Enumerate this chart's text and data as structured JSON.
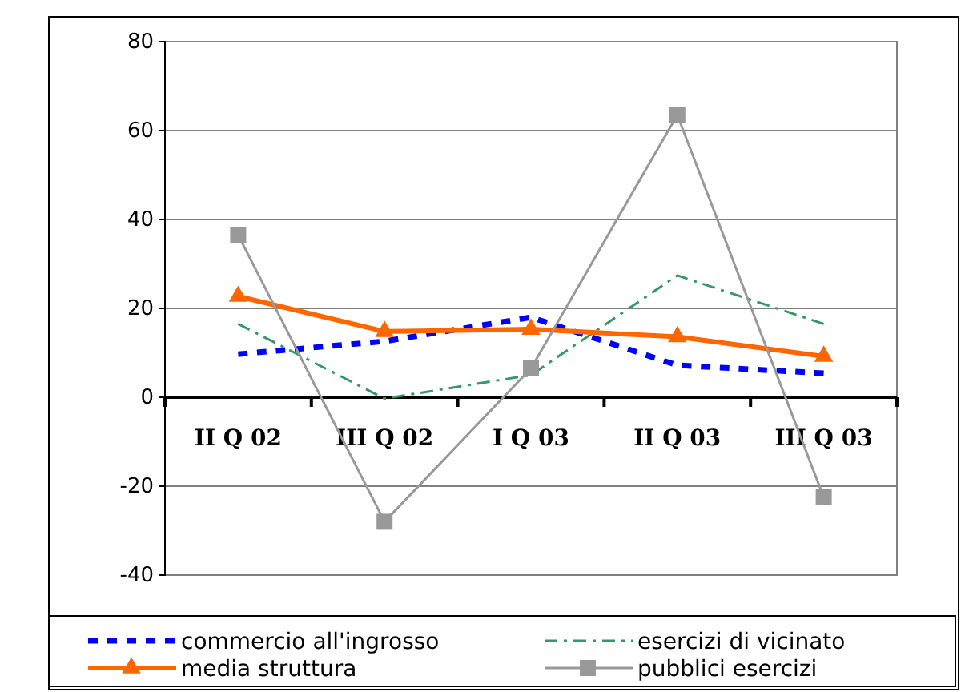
{
  "chart_data": {
    "type": "line",
    "categories": [
      "II Q 02",
      "III Q 02",
      "I Q 03",
      "II Q 03",
      "III Q 03"
    ],
    "ylim": [
      -40,
      80
    ],
    "yticks": [
      -40,
      -20,
      0,
      20,
      40,
      60,
      80
    ],
    "grid": "y",
    "legend": "bottom",
    "series": [
      {
        "name": "commercio all'ingrosso",
        "color": "#0000ff",
        "line_style": "dashed",
        "marker": "none",
        "values": [
          9.7,
          12.6,
          18,
          7.2,
          5.4
        ]
      },
      {
        "name": "esercizi di vicinato",
        "color": "#339966",
        "line_style": "dashdot",
        "marker": "none",
        "values": [
          16.5,
          -0.3,
          5,
          27.4,
          16.5
        ]
      },
      {
        "name": "media struttura",
        "color": "#ff6600",
        "line_style": "solid",
        "marker": "triangle",
        "values": [
          22.7,
          14.8,
          15.3,
          13.6,
          9.2
        ]
      },
      {
        "name": "pubblici esercizi",
        "color": "#999999",
        "line_style": "solid",
        "marker": "square",
        "values": [
          36.5,
          -28,
          6.5,
          63.5,
          -22.5
        ]
      }
    ]
  }
}
